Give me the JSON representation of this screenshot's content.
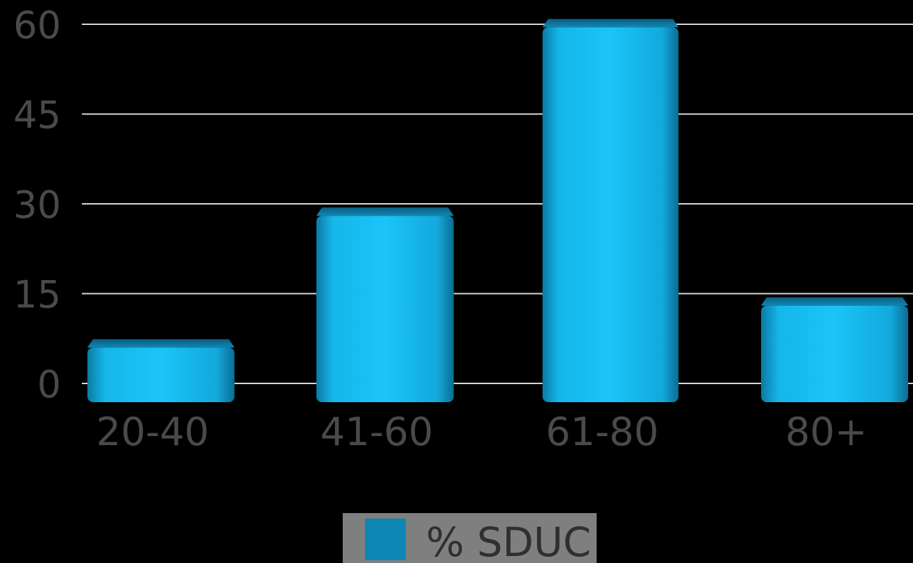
{
  "chart_data": {
    "type": "bar",
    "categories": [
      "20-40",
      "41-60",
      "61-80",
      "80+"
    ],
    "series": [
      {
        "name": "% SDUC",
        "values": [
          6,
          28,
          59.5,
          13
        ]
      }
    ],
    "yticks": [
      "0",
      "15",
      "30",
      "45",
      "60"
    ],
    "ylim": [
      0,
      60
    ],
    "grid": true,
    "legend_position": "bottom",
    "colors": {
      "bar": "#14b8ec",
      "bar_dark": "#0a6f93",
      "legend_swatch": "#0e86b4",
      "legend_bg": "#7f7f7f",
      "grid": "#d9d9d9"
    }
  }
}
